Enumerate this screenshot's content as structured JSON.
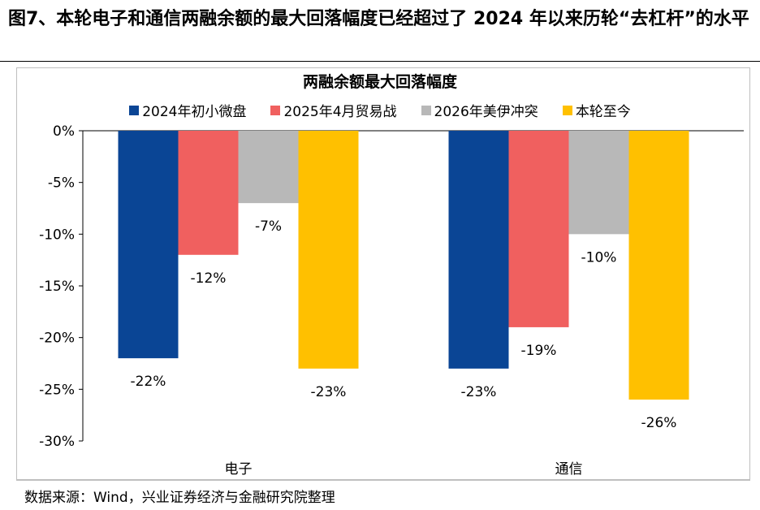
{
  "figure_title": "图7、本轮电子和通信两融余额的最大回落幅度已经超过了 2024 年以来历轮“去杠杆”的水平",
  "source": "数据来源：Wind，兴业证券经济与金融研究院整理",
  "colors": {
    "2024年初小微盘": "#0A4595",
    "2025年4月贸易战": "#F0605F",
    "2026年美伊冲突": "#B8B8B8",
    "本轮至今": "#FFC000"
  },
  "chart_data": {
    "type": "bar",
    "title": "两融余额最大回落幅度",
    "categories": [
      "电子",
      "通信"
    ],
    "series": [
      {
        "name": "2024年初小微盘",
        "values": [
          -22,
          -23
        ],
        "labels": [
          "-22%",
          "-23%"
        ]
      },
      {
        "name": "2025年4月贸易战",
        "values": [
          -12,
          -19
        ],
        "labels": [
          "-12%",
          "-19%"
        ]
      },
      {
        "name": "2026年美伊冲突",
        "values": [
          -7,
          -10
        ],
        "labels": [
          "-7%",
          "-10%"
        ]
      },
      {
        "name": "本轮至今",
        "values": [
          -23,
          -26
        ],
        "labels": [
          "-23%",
          "-26%"
        ]
      }
    ],
    "ylim": [
      -30,
      0
    ],
    "yticks": [
      0,
      -5,
      -10,
      -15,
      -20,
      -25,
      -30
    ],
    "ytick_labels": [
      "0%",
      "-5%",
      "-10%",
      "-15%",
      "-20%",
      "-25%",
      "-30%"
    ],
    "legend": "top",
    "grid": false
  }
}
